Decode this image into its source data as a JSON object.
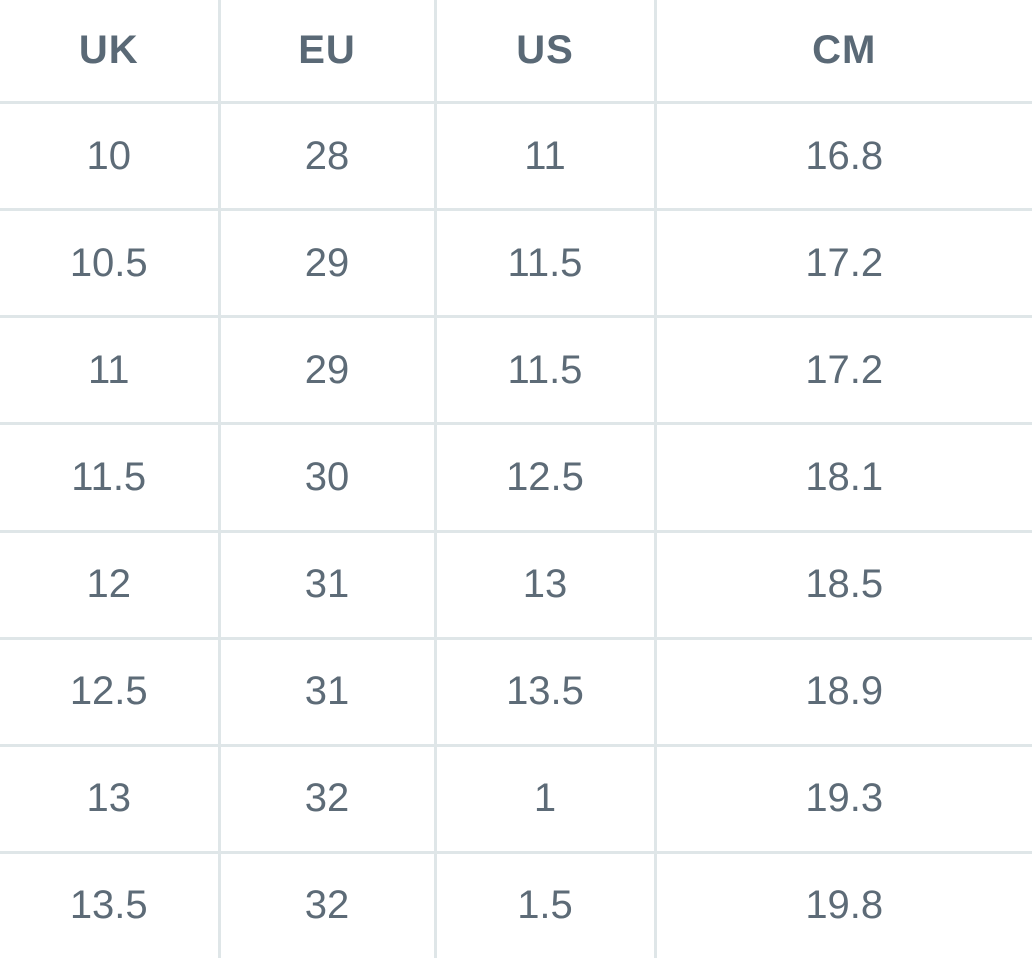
{
  "table": {
    "headers": [
      "UK",
      "EU",
      "US",
      "CM"
    ],
    "rows": [
      [
        "10",
        "28",
        "11",
        "16.8"
      ],
      [
        "10.5",
        "29",
        "11.5",
        "17.2"
      ],
      [
        "11",
        "29",
        "11.5",
        "17.2"
      ],
      [
        "11.5",
        "30",
        "12.5",
        "18.1"
      ],
      [
        "12",
        "31",
        "13",
        "18.5"
      ],
      [
        "12.5",
        "31",
        "13.5",
        "18.9"
      ],
      [
        "13",
        "32",
        "1",
        "19.3"
      ],
      [
        "13.5",
        "32",
        "1.5",
        "19.8"
      ]
    ]
  },
  "colors": {
    "text": "#5d6b77",
    "header_text": "#5a6976",
    "grid": "#dfe6e8",
    "background": "#ffffff"
  }
}
